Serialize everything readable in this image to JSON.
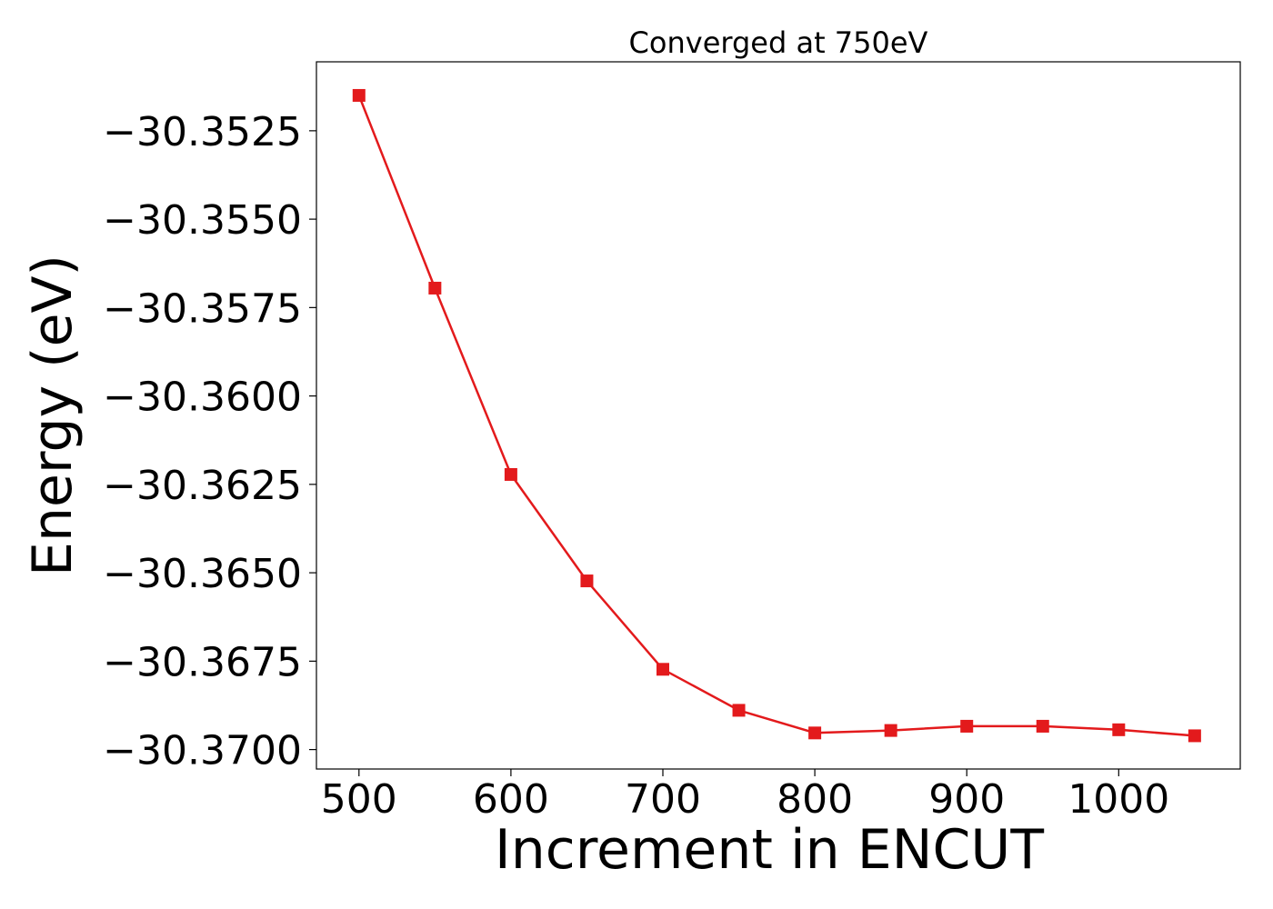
{
  "chart_data": {
    "type": "line",
    "title": "Converged at 750eV",
    "xlabel": "Increment in ENCUT",
    "ylabel": "Energy (eV)",
    "xlim": [
      472,
      1080
    ],
    "ylim": [
      -30.37055,
      -30.35055
    ],
    "xticks": [
      500,
      600,
      700,
      800,
      900,
      1000
    ],
    "xtick_labels": [
      "500",
      "600",
      "700",
      "800",
      "900",
      "1000"
    ],
    "yticks": [
      -30.3525,
      -30.355,
      -30.3575,
      -30.36,
      -30.3625,
      -30.365,
      -30.3675,
      -30.37
    ],
    "ytick_labels": [
      "−30.3525",
      "−30.3550",
      "−30.3575",
      "−30.3600",
      "−30.3625",
      "−30.3650",
      "−30.3675",
      "−30.3700"
    ],
    "grid": false,
    "series": [
      {
        "color": "#e31a1c",
        "marker": "square",
        "x": [
          500,
          550,
          600,
          650,
          700,
          750,
          800,
          850,
          900,
          950,
          1000,
          1050
        ],
        "y": [
          -30.3515,
          -30.35695,
          -30.36222,
          -30.36523,
          -30.36773,
          -30.36889,
          -30.36953,
          -30.36946,
          -30.36934,
          -30.36934,
          -30.36944,
          -30.36961
        ]
      }
    ]
  }
}
